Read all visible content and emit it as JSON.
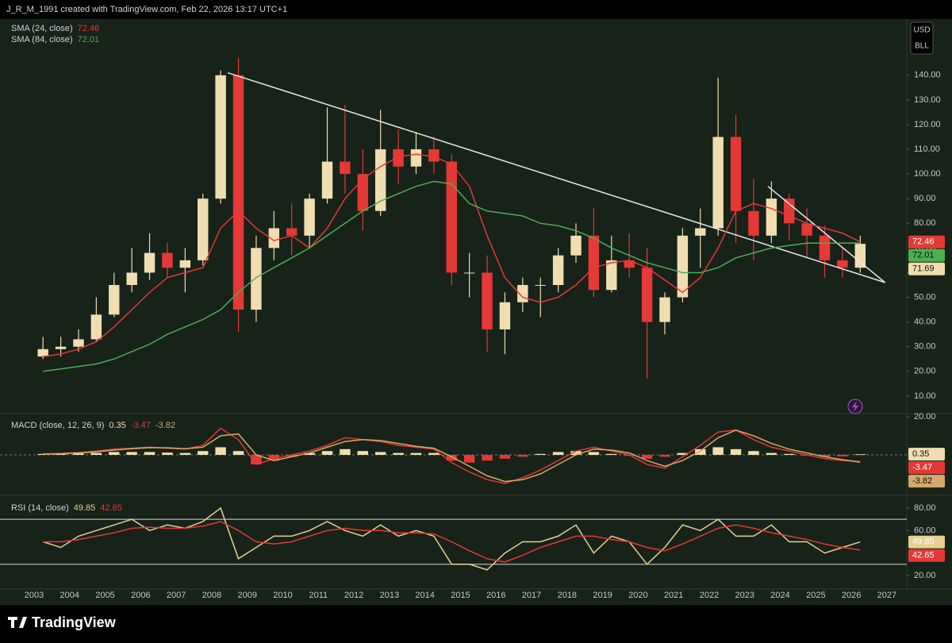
{
  "header": {
    "text": "J_R_M_1991 created with TradingView.com, Feb 22, 2026 13:17 UTC+1"
  },
  "currency": [
    "USD",
    "BLL"
  ],
  "footer": {
    "brand": "TradingView"
  },
  "chart_data": [
    {
      "type": "candlestick",
      "x": [
        2003.25,
        2003.75,
        2004.25,
        2004.75,
        2005.25,
        2005.75,
        2006.25,
        2006.75,
        2007.25,
        2007.75,
        2008.25,
        2008.75,
        2009.25,
        2009.75,
        2010.25,
        2010.75,
        2011.25,
        2011.75,
        2012.25,
        2012.75,
        2013.25,
        2013.75,
        2014.25,
        2014.75,
        2015.25,
        2015.75,
        2016.25,
        2016.75,
        2017.25,
        2017.75,
        2018.25,
        2018.75,
        2019.25,
        2019.75,
        2020.25,
        2020.75,
        2021.25,
        2021.75,
        2022.25,
        2022.75,
        2023.25,
        2023.75,
        2024.25,
        2024.75,
        2025.25,
        2025.75,
        2026.25
      ],
      "open": [
        26,
        29,
        30,
        33,
        43,
        55,
        60,
        68,
        62,
        65,
        90,
        140,
        45,
        70,
        78,
        75,
        90,
        105,
        100,
        85,
        110,
        103,
        110,
        105,
        60,
        60,
        37,
        48,
        55,
        55,
        67,
        75,
        53,
        65,
        62,
        40,
        50,
        75,
        78,
        115,
        85,
        75,
        90,
        80,
        75,
        65,
        62
      ],
      "high": [
        34,
        34,
        37,
        50,
        60,
        70,
        76,
        72,
        70,
        92,
        142,
        147,
        75,
        85,
        88,
        92,
        127,
        128,
        110,
        126,
        118,
        117,
        115,
        108,
        68,
        67,
        52,
        58,
        58,
        70,
        80,
        86,
        75,
        76,
        70,
        52,
        78,
        86,
        139,
        124,
        98,
        97,
        92,
        86,
        79,
        70,
        75
      ],
      "low": [
        25,
        26,
        28,
        32,
        42,
        52,
        57,
        58,
        52,
        63,
        88,
        36,
        40,
        65,
        67,
        70,
        88,
        92,
        77,
        83,
        96,
        100,
        100,
        55,
        50,
        28,
        27,
        44,
        42,
        52,
        64,
        50,
        52,
        58,
        17,
        35,
        48,
        62,
        75,
        72,
        65,
        72,
        73,
        66,
        58,
        58,
        60
      ],
      "close": [
        29,
        30,
        33,
        43,
        55,
        60,
        68,
        62,
        65,
        90,
        140,
        45,
        70,
        78,
        75,
        90,
        105,
        100,
        85,
        110,
        103,
        110,
        105,
        60,
        60,
        37,
        48,
        55,
        55,
        67,
        75,
        53,
        65,
        62,
        40,
        50,
        75,
        78,
        115,
        85,
        75,
        90,
        80,
        75,
        65,
        62,
        71.69
      ],
      "up_color": "#f0deb0",
      "down_color": "#e53935",
      "series": [
        {
          "name": "SMA (24, close)",
          "color": "#e53935",
          "values": [
            26,
            27,
            29,
            32,
            38,
            45,
            52,
            58,
            60,
            62,
            78,
            85,
            78,
            73,
            75,
            70,
            78,
            90,
            98,
            103,
            107,
            108,
            107,
            104,
            95,
            75,
            58,
            50,
            48,
            50,
            55,
            62,
            64,
            65,
            62,
            57,
            52,
            58,
            70,
            85,
            88,
            86,
            83,
            80,
            78,
            76,
            72.46
          ]
        },
        {
          "name": "SMA (84, close)",
          "color": "#4caf50",
          "values": [
            20,
            21,
            22,
            23,
            25,
            28,
            31,
            35,
            38,
            41,
            45,
            52,
            58,
            62,
            66,
            70,
            75,
            80,
            85,
            89,
            92,
            95,
            97,
            96,
            88,
            85,
            84,
            83,
            80,
            79,
            77,
            74,
            70,
            67,
            64,
            62,
            60,
            60,
            62,
            66,
            68,
            70,
            71,
            72,
            72,
            72,
            72.01
          ]
        }
      ],
      "trendlines": [
        {
          "x": [
            2008.45,
            2026.95
          ],
          "y": [
            141,
            56
          ]
        },
        {
          "x": [
            2023.65,
            2026.95
          ],
          "y": [
            95,
            56
          ]
        }
      ],
      "xlim": [
        2002.04,
        2027.56
      ],
      "xticks": [
        2003,
        2004,
        2005,
        2006,
        2007,
        2008,
        2009,
        2010,
        2011,
        2012,
        2013,
        2014,
        2015,
        2016,
        2017,
        2018,
        2019,
        2020,
        2021,
        2022,
        2023,
        2024,
        2025,
        2026,
        2027
      ],
      "ylim": [
        3.2,
        161.5
      ],
      "yticks": [
        {
          "value": 10,
          "label": "10.00"
        },
        {
          "value": 20,
          "label": "20.00"
        },
        {
          "value": 30,
          "label": "30.00"
        },
        {
          "value": 40,
          "label": "40.00"
        },
        {
          "value": 50,
          "label": "50.00"
        },
        {
          "value": 60,
          "label": "60.00"
        },
        {
          "value": 70,
          "label": "70.00"
        },
        {
          "value": 80,
          "label": "80.00"
        },
        {
          "value": 90,
          "label": "90.00"
        },
        {
          "value": 100,
          "label": "100.00"
        },
        {
          "value": 110,
          "label": "110.00"
        },
        {
          "value": 120,
          "label": "120.00"
        },
        {
          "value": 130,
          "label": "130.00"
        },
        {
          "value": 140,
          "label": "140.00"
        }
      ]
    },
    {
      "type": "bar",
      "title": "MACD (close, 12, 26, 9)",
      "values": [
        0.5,
        0.6,
        0.8,
        1,
        1.5,
        1.5,
        1.5,
        1.2,
        1,
        2,
        4,
        2,
        -5,
        -3,
        -1,
        1,
        2,
        3,
        2,
        1.5,
        1,
        1,
        1,
        -3,
        -4,
        -3,
        -2,
        -1,
        0.5,
        1.5,
        2,
        1.5,
        0.5,
        -0.5,
        -2,
        -1,
        1,
        3,
        4,
        3,
        2,
        1,
        0.5,
        -0.5,
        -1,
        -0.8,
        0.35
      ],
      "up_color": "#f0deb0",
      "down_color": "#e53935",
      "series": [
        {
          "color": "#e53935",
          "values": [
            0.5,
            0.8,
            1.2,
            2,
            3,
            3.5,
            4,
            3.5,
            3,
            5,
            14,
            8,
            -5,
            -2,
            0,
            2,
            5,
            9,
            8,
            7,
            5,
            4,
            3,
            -4,
            -9,
            -13,
            -15,
            -12,
            -8,
            -3,
            2,
            4,
            2,
            0,
            -5,
            -7,
            -1,
            5,
            12,
            13,
            8,
            4,
            2,
            0,
            -2,
            -3,
            -3.47
          ]
        },
        {
          "color": "#d4a96a",
          "values": [
            0.3,
            0.6,
            1,
            1.6,
            2.5,
            3.2,
            3.8,
            3.7,
            3.2,
            4,
            10,
            11,
            0,
            -3,
            -1,
            1,
            4,
            7,
            8,
            7.5,
            6,
            4.5,
            3.5,
            -1,
            -6,
            -11,
            -14,
            -13,
            -10,
            -5,
            0,
            3,
            2.5,
            1,
            -3,
            -6,
            -3,
            2,
            9,
            13,
            10,
            6,
            3,
            1,
            -1,
            -2.5,
            -3.82
          ]
        }
      ],
      "ylim": [
        -20.4,
        21.25
      ],
      "yticks": [
        {
          "value": 20,
          "label": "20.00"
        }
      ]
    },
    {
      "type": "line",
      "title": "RSI (14, close)",
      "series": [
        {
          "color": "#e6cf90",
          "values": [
            50,
            45,
            55,
            60,
            65,
            70,
            60,
            65,
            62,
            68,
            80,
            35,
            45,
            55,
            55,
            60,
            68,
            60,
            55,
            65,
            55,
            60,
            55,
            30,
            30,
            25,
            40,
            50,
            50,
            55,
            65,
            40,
            55,
            50,
            30,
            45,
            65,
            60,
            70,
            55,
            55,
            65,
            50,
            50,
            40,
            45,
            49.85
          ]
        },
        {
          "color": "#e53935",
          "values": [
            50,
            50,
            52,
            55,
            58,
            62,
            63,
            62,
            62,
            64,
            68,
            60,
            50,
            48,
            50,
            55,
            60,
            62,
            60,
            60,
            58,
            58,
            57,
            50,
            42,
            35,
            32,
            38,
            45,
            50,
            55,
            55,
            52,
            50,
            45,
            42,
            48,
            55,
            62,
            65,
            62,
            58,
            55,
            52,
            48,
            45,
            42.65
          ]
        }
      ],
      "levels": [
        70,
        30
      ],
      "ylim": [
        8,
        89.9
      ],
      "yticks": [
        {
          "value": 20,
          "label": "20.00"
        },
        {
          "value": 60,
          "label": "60.00"
        },
        {
          "value": 80,
          "label": "80.00"
        }
      ]
    }
  ]
}
